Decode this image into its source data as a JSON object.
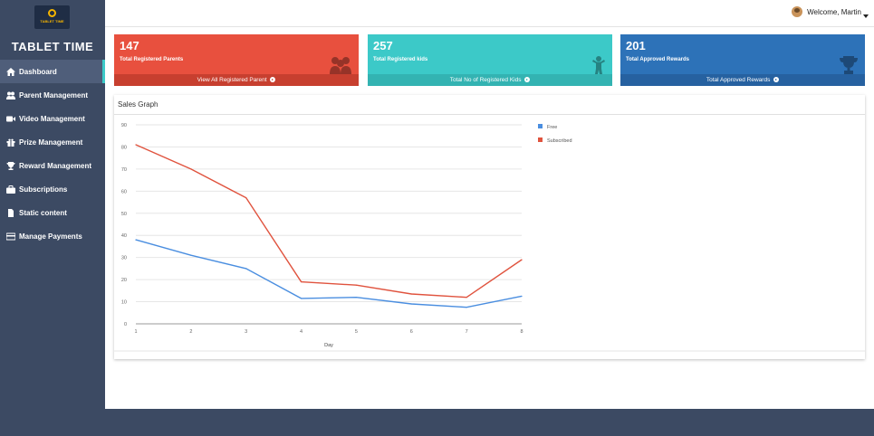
{
  "sidebar": {
    "logo_text": "TABLET TIME",
    "brand": "TABLET TIME",
    "items": [
      {
        "label": "Dashboard",
        "icon": "home-icon"
      },
      {
        "label": "Parent Management",
        "icon": "users-icon"
      },
      {
        "label": "Video Management",
        "icon": "video-icon"
      },
      {
        "label": "Prize Management",
        "icon": "gift-icon"
      },
      {
        "label": "Reward Management",
        "icon": "trophy-icon"
      },
      {
        "label": "Subscriptions",
        "icon": "briefcase-icon"
      },
      {
        "label": "Static content",
        "icon": "file-icon"
      },
      {
        "label": "Manage Payments",
        "icon": "credit-card-icon"
      }
    ]
  },
  "header": {
    "welcome": "Welcome, Martin"
  },
  "cards": [
    {
      "value": "147",
      "label": "Total Registered Parents",
      "footer": "View All Registered Parent",
      "color": "#e8503e"
    },
    {
      "value": "257",
      "label": "Total Registered kids",
      "footer": "Total No of Registered Kids",
      "color": "#3cc9c8"
    },
    {
      "value": "201",
      "label": "Total Approved Rewards",
      "footer": "Total Approved Rewards",
      "color": "#2d72b8"
    }
  ],
  "graph": {
    "title": "Sales Graph"
  },
  "chart_data": {
    "type": "line",
    "title": "",
    "xlabel": "Day",
    "ylabel": "",
    "x": [
      1,
      2,
      3,
      4,
      5,
      6,
      7,
      8
    ],
    "ylim": [
      0,
      90
    ],
    "yticks": [
      0,
      10,
      20,
      30,
      40,
      50,
      60,
      70,
      80,
      90
    ],
    "grid": true,
    "legend_position": "top-right",
    "series": [
      {
        "name": "Free",
        "color": "#4a8ee0",
        "values": [
          38,
          31,
          25,
          11.5,
          12,
          9,
          7.5,
          12.5
        ]
      },
      {
        "name": "Subscribed",
        "color": "#e0533e",
        "values": [
          81,
          70,
          57,
          19,
          17.5,
          13.5,
          12,
          29
        ]
      }
    ]
  }
}
